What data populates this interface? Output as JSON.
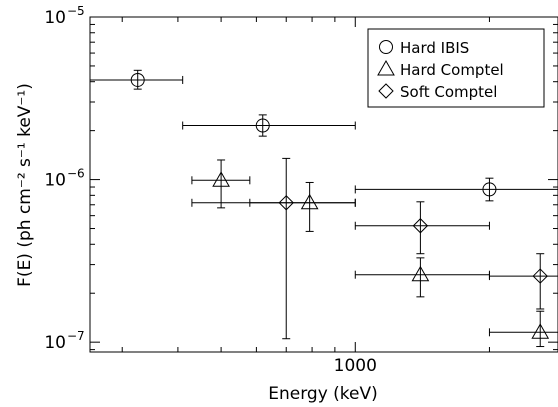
{
  "chart_data": {
    "type": "scatter",
    "xscale": "log",
    "yscale": "log",
    "xlim": [
      254,
      2850
    ],
    "ylim": [
      8.7e-08,
      1e-05
    ],
    "xlabel": "Energy (keV)",
    "ylabel": "F(E) (ph cm⁻² s⁻¹ keV⁻¹)",
    "xticks": [
      {
        "value": 1000,
        "label": "1000"
      }
    ],
    "yticks": [
      {
        "value": 1e-07,
        "base": "10",
        "exp": "−7"
      },
      {
        "value": 1e-06,
        "base": "10",
        "exp": "−6"
      },
      {
        "value": 1e-05,
        "base": "10",
        "exp": "−5"
      }
    ],
    "legend": {
      "placement": "top-right",
      "entries": [
        {
          "marker": "circle",
          "label": "Hard IBIS"
        },
        {
          "marker": "triangle",
          "label": "Hard Comptel"
        },
        {
          "marker": "diamond",
          "label": "Soft Comptel"
        }
      ]
    },
    "series": [
      {
        "name": "Hard IBIS",
        "marker": "circle",
        "points": [
          {
            "x": 325,
            "xlo": 254,
            "xhi": 410,
            "y": 4.1e-06,
            "ylo": 3.6e-06,
            "yhi": 4.7e-06
          },
          {
            "x": 620,
            "xlo": 410,
            "xhi": 1000,
            "y": 2.15e-06,
            "ylo": 1.85e-06,
            "yhi": 2.5e-06
          },
          {
            "x": 2000,
            "xlo": 1000,
            "xhi": 2850,
            "y": 8.7e-07,
            "ylo": 7.4e-07,
            "yhi": 1.02e-06
          }
        ]
      },
      {
        "name": "Hard Comptel",
        "marker": "triangle",
        "points": [
          {
            "x": 500,
            "xlo": 430,
            "xhi": 580,
            "y": 9.9e-07,
            "ylo": 6.7e-07,
            "yhi": 1.32e-06
          },
          {
            "x": 790,
            "xlo": 580,
            "xhi": 1000,
            "y": 7.2e-07,
            "ylo": 4.8e-07,
            "yhi": 9.6e-07
          },
          {
            "x": 1400,
            "xlo": 1000,
            "xhi": 2000,
            "y": 2.6e-07,
            "ylo": 1.9e-07,
            "yhi": 3.3e-07
          },
          {
            "x": 2600,
            "xlo": 2000,
            "xhi": 2850,
            "y": 1.15e-07,
            "ylo": 9.4e-08,
            "yhi": 1.55e-07
          }
        ]
      },
      {
        "name": "Soft Comptel",
        "marker": "diamond",
        "points": [
          {
            "x": 700,
            "xlo": 430,
            "xhi": 1000,
            "y": 7.2e-07,
            "ylo": 1.05e-07,
            "yhi": 1.35e-06
          },
          {
            "x": 1400,
            "xlo": 1000,
            "xhi": 2000,
            "y": 5.2e-07,
            "ylo": 3.5e-07,
            "yhi": 7.3e-07
          },
          {
            "x": 2600,
            "xlo": 2000,
            "xhi": 2850,
            "y": 2.55e-07,
            "ylo": 1.6e-07,
            "yhi": 3.5e-07
          }
        ]
      }
    ]
  }
}
